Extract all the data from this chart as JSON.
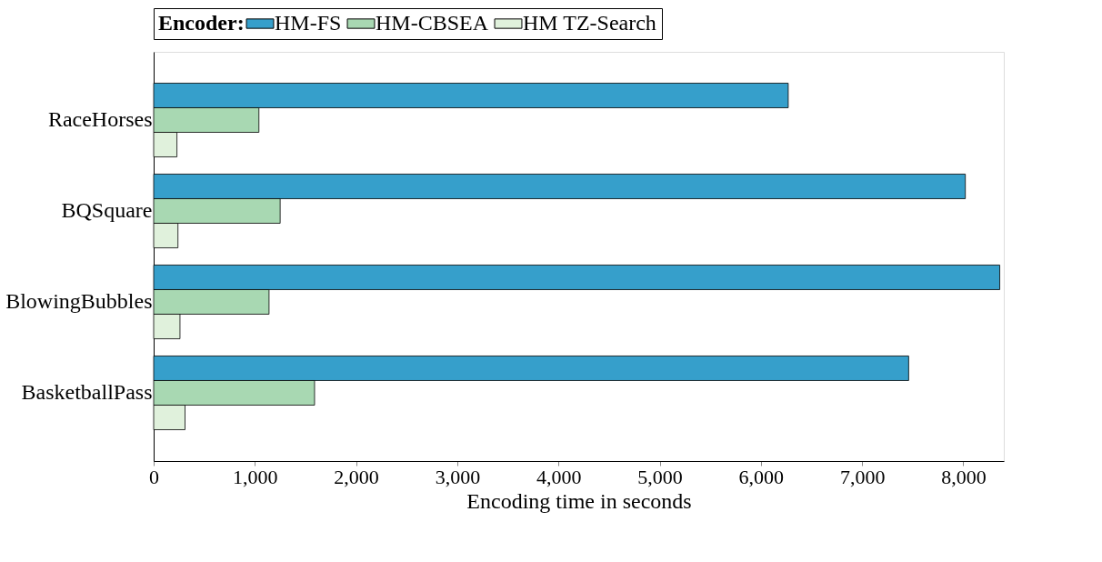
{
  "chart_data": {
    "type": "bar",
    "orientation": "horizontal",
    "xlabel": "Encoding time in seconds",
    "legend_title": "Encoder:",
    "legend": "top",
    "categories": [
      "RaceHorses",
      "BQSquare",
      "BlowingBubbles",
      "BasketballPass"
    ],
    "series": [
      {
        "name": "HM-FS",
        "color": "#369fcb",
        "values": [
          6270,
          8020,
          8360,
          7460
        ]
      },
      {
        "name": "HM-CBSEA",
        "color": "#a8d8b2",
        "values": [
          1040,
          1250,
          1140,
          1590
        ]
      },
      {
        "name": "HM TZ-Search",
        "color": "#e0f1dc",
        "values": [
          230,
          240,
          260,
          310
        ]
      }
    ],
    "xlim": [
      0,
      8400
    ],
    "xticks": [
      0,
      {
        "value": 1000,
        "label": "1,000"
      },
      {
        "value": 2000,
        "label": "2,000"
      },
      {
        "value": 3000,
        "label": "3,000"
      },
      {
        "value": 4000,
        "label": "4,000"
      },
      {
        "value": 5000,
        "label": "5,000"
      },
      {
        "value": 6000,
        "label": "6,000"
      },
      {
        "value": 7000,
        "label": "7,000"
      },
      {
        "value": 8000,
        "label": "8,000"
      }
    ],
    "grid": false
  }
}
